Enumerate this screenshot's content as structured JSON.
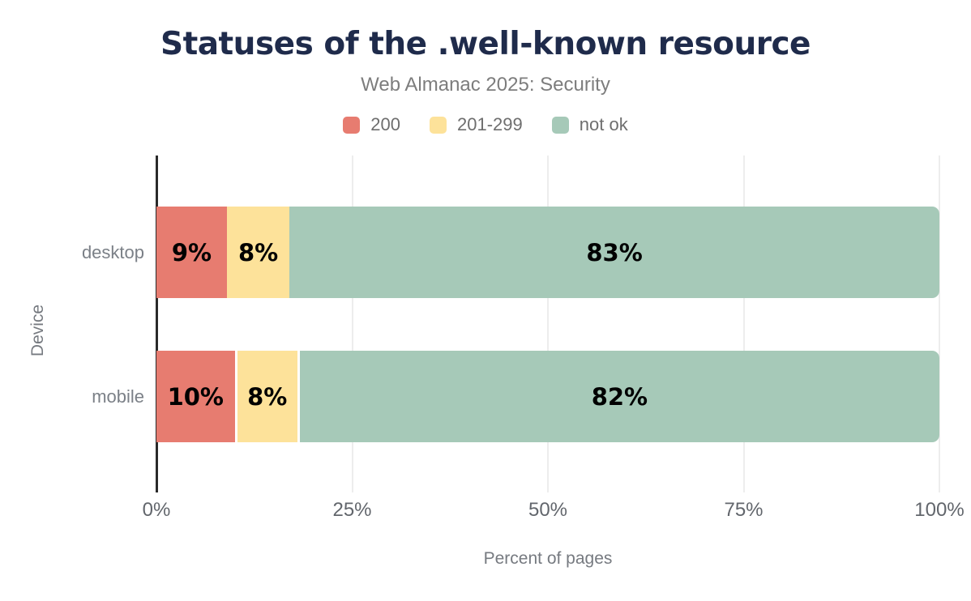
{
  "chart_data": {
    "type": "bar",
    "stacked": true,
    "orientation": "horizontal",
    "title": "Statuses of the .well-known resource",
    "subtitle": "Web Almanac 2025: Security",
    "xlabel": "Percent of pages",
    "ylabel": "Device",
    "categories": [
      "desktop",
      "mobile"
    ],
    "series": [
      {
        "name": "200",
        "color": "#e77c70",
        "values": [
          9,
          10
        ]
      },
      {
        "name": "201-299",
        "color": "#fde29a",
        "values": [
          8,
          8
        ]
      },
      {
        "name": "not ok",
        "color": "#a6c9b8",
        "values": [
          83,
          82
        ]
      }
    ],
    "data_labels": [
      [
        "9%",
        "8%",
        "83%"
      ],
      [
        "10%",
        "8%",
        "82%"
      ]
    ],
    "x_ticks": [
      "0%",
      "25%",
      "50%",
      "75%",
      "100%"
    ],
    "xlim": [
      0,
      100
    ],
    "grid": "vertical",
    "legend_position": "top"
  },
  "colors": {
    "background": "#ffffff",
    "title": "#1f2b4b",
    "subtitle": "#7d7d7d",
    "legend_text": "#6e6e6e",
    "axis_text": "#62666c",
    "category_text": "#7b8087",
    "axis_line": "#2a2a2a",
    "gridline": "#ededed",
    "bar_label": "#000000"
  }
}
